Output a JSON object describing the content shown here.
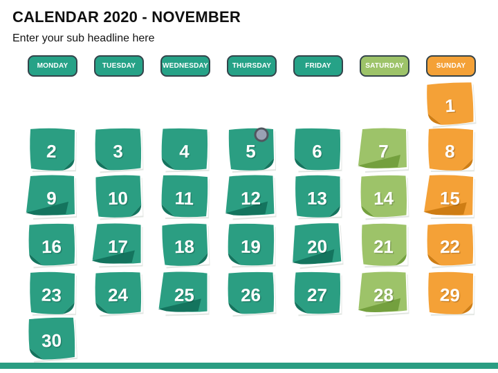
{
  "slide": {
    "title": "CALENDAR 2020 - NOVEMBER",
    "subtitle": "Enter your sub headline here"
  },
  "colors": {
    "weekday": "#2B9E82",
    "weekday_dark": "#14745E",
    "saturday": "#9DC369",
    "saturday_dark": "#74A03E",
    "sunday": "#F4A137",
    "sunday_dark": "#CE7D14",
    "header_weekday": "#26A287",
    "header_saturday": "#9DC369",
    "header_sunday": "#F4A137",
    "header_border": "#33434a",
    "footer_bar": "#2A9D82",
    "pin_fill": "#99A2B4",
    "pin_ring": "#51565F",
    "number_color": "#FFFFFF"
  },
  "weekdays": [
    {
      "label": "MONDAY",
      "type": "weekday"
    },
    {
      "label": "TUESDAY",
      "type": "weekday"
    },
    {
      "label": "WEDNESDAY",
      "type": "weekday"
    },
    {
      "label": "THURSDAY",
      "type": "weekday"
    },
    {
      "label": "FRIDAY",
      "type": "weekday"
    },
    {
      "label": "SATURDAY",
      "type": "saturday"
    },
    {
      "label": "SUNDAY",
      "type": "sunday"
    }
  ],
  "calendar": {
    "month": "November",
    "year": "2020",
    "days": [
      {
        "day": "1",
        "col": 6,
        "row": 0,
        "fold": "bl",
        "rot": -3,
        "pin": false
      },
      {
        "day": "2",
        "col": 0,
        "row": 1,
        "fold": "br",
        "rot": 2,
        "pin": false
      },
      {
        "day": "3",
        "col": 1,
        "row": 1,
        "fold": "bl",
        "rot": -1,
        "pin": false
      },
      {
        "day": "4",
        "col": 2,
        "row": 1,
        "fold": "bl",
        "rot": 1,
        "pin": false
      },
      {
        "day": "5",
        "col": 3,
        "row": 1,
        "fold": "br",
        "rot": 0,
        "pin": true
      },
      {
        "day": "6",
        "col": 4,
        "row": 1,
        "fold": "bl",
        "rot": 1,
        "pin": false
      },
      {
        "day": "7",
        "col": 5,
        "row": 1,
        "fold": "blL",
        "rot": 0,
        "pin": false
      },
      {
        "day": "8",
        "col": 6,
        "row": 1,
        "fold": "br",
        "rot": 2,
        "pin": false
      },
      {
        "day": "9",
        "col": 0,
        "row": 2,
        "fold": "blL",
        "rot": 0,
        "pin": false
      },
      {
        "day": "10",
        "col": 1,
        "row": 2,
        "fold": "br",
        "rot": -1,
        "pin": false
      },
      {
        "day": "11",
        "col": 2,
        "row": 2,
        "fold": "bl",
        "rot": 2,
        "pin": false
      },
      {
        "day": "12",
        "col": 3,
        "row": 2,
        "fold": "blL",
        "rot": -1,
        "pin": false
      },
      {
        "day": "13",
        "col": 4,
        "row": 2,
        "fold": "br",
        "rot": 1,
        "pin": false
      },
      {
        "day": "14",
        "col": 5,
        "row": 2,
        "fold": "bl",
        "rot": -1,
        "pin": false
      },
      {
        "day": "15",
        "col": 6,
        "row": 2,
        "fold": "blL",
        "rot": 2,
        "pin": false
      },
      {
        "day": "16",
        "col": 0,
        "row": 3,
        "fold": "bl",
        "rot": -1,
        "pin": false
      },
      {
        "day": "17",
        "col": 1,
        "row": 3,
        "fold": "blL",
        "rot": 1,
        "pin": false
      },
      {
        "day": "18",
        "col": 2,
        "row": 3,
        "fold": "br",
        "rot": -1,
        "pin": false
      },
      {
        "day": "19",
        "col": 3,
        "row": 3,
        "fold": "bl",
        "rot": 1,
        "pin": false
      },
      {
        "day": "20",
        "col": 4,
        "row": 3,
        "fold": "blL",
        "rot": -3,
        "pin": false
      },
      {
        "day": "21",
        "col": 5,
        "row": 3,
        "fold": "br",
        "rot": 1,
        "pin": false
      },
      {
        "day": "22",
        "col": 6,
        "row": 3,
        "fold": "bl",
        "rot": -1,
        "pin": false
      },
      {
        "day": "23",
        "col": 0,
        "row": 4,
        "fold": "br",
        "rot": 2,
        "pin": false
      },
      {
        "day": "24",
        "col": 1,
        "row": 4,
        "fold": "bl",
        "rot": -1,
        "pin": false
      },
      {
        "day": "25",
        "col": 2,
        "row": 4,
        "fold": "blL",
        "rot": 1,
        "pin": false
      },
      {
        "day": "26",
        "col": 3,
        "row": 4,
        "fold": "bl",
        "rot": -1,
        "pin": false
      },
      {
        "day": "27",
        "col": 4,
        "row": 4,
        "fold": "bl",
        "rot": 1,
        "pin": false
      },
      {
        "day": "28",
        "col": 5,
        "row": 4,
        "fold": "blL",
        "rot": -1,
        "pin": false
      },
      {
        "day": "29",
        "col": 6,
        "row": 4,
        "fold": "br",
        "rot": 2,
        "pin": false
      },
      {
        "day": "30",
        "col": 0,
        "row": 5,
        "fold": "bl",
        "rot": -2,
        "pin": false
      }
    ]
  }
}
